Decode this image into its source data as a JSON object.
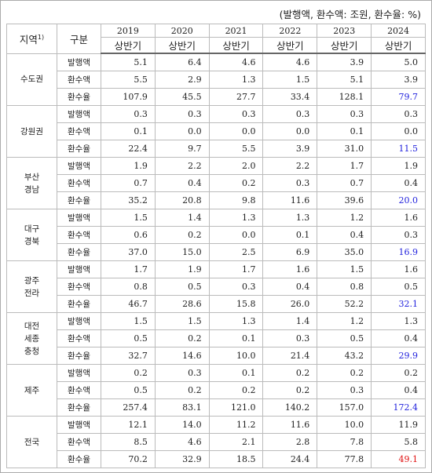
{
  "unit_note": "(발행액, 환수액: 조원, 환수율: %)",
  "header": {
    "region": {
      "text": "지역",
      "note": "1)"
    },
    "category": "구분",
    "years": [
      {
        "year": "2019",
        "period": "상반기"
      },
      {
        "year": "2020",
        "period": "상반기"
      },
      {
        "year": "2021",
        "period": "상반기"
      },
      {
        "year": "2022",
        "period": "상반기"
      },
      {
        "year": "2023",
        "period": "상반기"
      },
      {
        "year": "2024",
        "period": "상반기"
      }
    ]
  },
  "regions": [
    {
      "name": [
        "수도권"
      ],
      "rows": [
        {
          "label": "발행액",
          "values": [
            "5.1",
            "6.4",
            "4.6",
            "4.6",
            "3.9",
            "5.0"
          ]
        },
        {
          "label": "환수액",
          "values": [
            "5.5",
            "2.9",
            "1.3",
            "1.5",
            "5.1",
            "3.9"
          ]
        },
        {
          "label": "환수율",
          "values": [
            "107.9",
            "45.5",
            "27.7",
            "33.4",
            "128.1",
            "79.7"
          ]
        }
      ]
    },
    {
      "name": [
        "강원권"
      ],
      "rows": [
        {
          "label": "발행액",
          "values": [
            "0.3",
            "0.3",
            "0.3",
            "0.3",
            "0.3",
            "0.3"
          ]
        },
        {
          "label": "환수액",
          "values": [
            "0.1",
            "0.0",
            "0.0",
            "0.0",
            "0.1",
            "0.0"
          ]
        },
        {
          "label": "환수율",
          "values": [
            "22.4",
            "9.7",
            "5.5",
            "3.9",
            "31.0",
            "11.5"
          ]
        }
      ]
    },
    {
      "name": [
        "부산",
        "경남"
      ],
      "rows": [
        {
          "label": "발행액",
          "values": [
            "1.9",
            "2.2",
            "2.0",
            "2.2",
            "1.7",
            "1.9"
          ]
        },
        {
          "label": "환수액",
          "values": [
            "0.7",
            "0.4",
            "0.2",
            "0.3",
            "0.7",
            "0.4"
          ]
        },
        {
          "label": "환수율",
          "values": [
            "35.2",
            "20.8",
            "9.8",
            "11.6",
            "39.6",
            "20.0"
          ]
        }
      ]
    },
    {
      "name": [
        "대구",
        "경북"
      ],
      "rows": [
        {
          "label": "발행액",
          "values": [
            "1.5",
            "1.4",
            "1.3",
            "1.3",
            "1.2",
            "1.6"
          ]
        },
        {
          "label": "환수액",
          "values": [
            "0.6",
            "0.2",
            "0.0",
            "0.1",
            "0.4",
            "0.3"
          ]
        },
        {
          "label": "환수율",
          "values": [
            "37.0",
            "15.0",
            "2.5",
            "6.9",
            "35.0",
            "16.9"
          ]
        }
      ]
    },
    {
      "name": [
        "광주",
        "전라"
      ],
      "rows": [
        {
          "label": "발행액",
          "values": [
            "1.7",
            "1.9",
            "1.7",
            "1.6",
            "1.5",
            "1.6"
          ]
        },
        {
          "label": "환수액",
          "values": [
            "0.8",
            "0.5",
            "0.3",
            "0.4",
            "0.8",
            "0.5"
          ]
        },
        {
          "label": "환수율",
          "values": [
            "46.7",
            "28.6",
            "15.8",
            "26.0",
            "52.2",
            "32.1"
          ]
        }
      ]
    },
    {
      "name": [
        "대전",
        "세종",
        "충청"
      ],
      "rows": [
        {
          "label": "발행액",
          "values": [
            "1.5",
            "1.5",
            "1.3",
            "1.4",
            "1.2",
            "1.3"
          ]
        },
        {
          "label": "환수액",
          "values": [
            "0.5",
            "0.2",
            "0.1",
            "0.3",
            "0.5",
            "0.4"
          ]
        },
        {
          "label": "환수율",
          "values": [
            "32.7",
            "14.6",
            "10.0",
            "21.4",
            "43.2",
            "29.9"
          ]
        }
      ]
    },
    {
      "name": [
        "제주"
      ],
      "rows": [
        {
          "label": "발행액",
          "values": [
            "0.2",
            "0.3",
            "0.1",
            "0.2",
            "0.2",
            "0.2"
          ]
        },
        {
          "label": "환수액",
          "values": [
            "0.5",
            "0.2",
            "0.2",
            "0.2",
            "0.3",
            "0.4"
          ]
        },
        {
          "label": "환수율",
          "values": [
            "257.4",
            "83.1",
            "121.0",
            "140.2",
            "157.0",
            "172.4"
          ]
        }
      ]
    },
    {
      "name": [
        "전국"
      ],
      "rows": [
        {
          "label": "발행액",
          "values": [
            "12.1",
            "14.0",
            "11.2",
            "11.6",
            "10.0",
            "11.9"
          ]
        },
        {
          "label": "환수액",
          "values": [
            "8.5",
            "4.6",
            "2.1",
            "2.8",
            "7.8",
            "5.8"
          ]
        },
        {
          "label": "환수율",
          "values": [
            "70.2",
            "32.9",
            "18.5",
            "24.4",
            "77.8",
            "49.1"
          ]
        }
      ]
    }
  ]
}
